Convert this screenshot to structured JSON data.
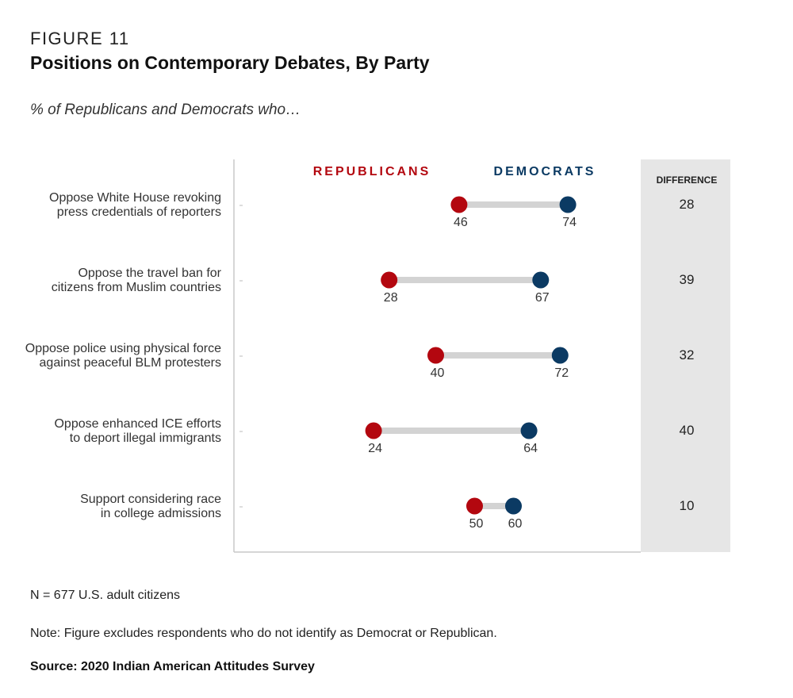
{
  "figure_label": "FIGURE 11",
  "title": "Positions on Contemporary Debates, By Party",
  "subtitle": "% of Republicans and Democrats who…",
  "colors": {
    "republican": "#b3070f",
    "democrat": "#0b3a63",
    "connector": "#d3d3d3",
    "difference_panel": "#e6e6e6"
  },
  "chart_data": {
    "type": "dumbbell",
    "legend": [
      "REPUBLICANS",
      "DEMOCRATS"
    ],
    "difference_header": "DIFFERENCE",
    "series": [
      {
        "name": "REPUBLICANS",
        "values": [
          46,
          28,
          40,
          24,
          50
        ]
      },
      {
        "name": "DEMOCRATS",
        "values": [
          74,
          67,
          72,
          64,
          60
        ]
      }
    ],
    "rows": [
      {
        "label_line1": "Oppose White House revoking",
        "label_line2": "press credentials of reporters",
        "republicans": 46,
        "democrats": 74,
        "difference": 28
      },
      {
        "label_line1": "Oppose the travel ban for",
        "label_line2": "citizens from Muslim countries",
        "republicans": 28,
        "democrats": 67,
        "difference": 39
      },
      {
        "label_line1": "Oppose police using physical force",
        "label_line2": "against peaceful BLM protesters",
        "republicans": 40,
        "democrats": 72,
        "difference": 32
      },
      {
        "label_line1": "Oppose enhanced ICE efforts",
        "label_line2": "to deport illegal immigrants",
        "republicans": 24,
        "democrats": 64,
        "difference": 40
      },
      {
        "label_line1": "Support considering race",
        "label_line2": "in college admissions",
        "republicans": 50,
        "democrats": 60,
        "difference": 10
      }
    ]
  },
  "footer": {
    "n": "N = 677 U.S. adult citizens",
    "note": "Note: Figure excludes respondents who do not identify as Democrat or Republican.",
    "source": "Source: 2020 Indian American Attitudes Survey"
  }
}
